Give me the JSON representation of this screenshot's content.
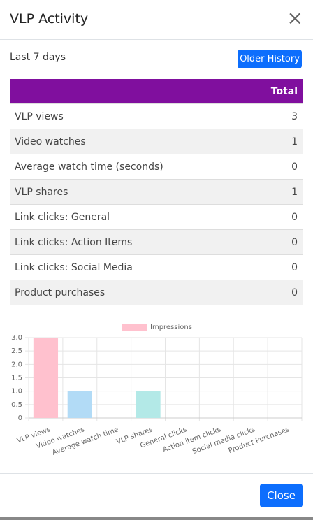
{
  "header": {
    "title": "VLP Activity",
    "close_icon": "×"
  },
  "period": "Last 7 days",
  "older_button": "Older History",
  "table": {
    "header": "Total",
    "rows": [
      [
        "VLP views",
        3
      ],
      [
        "Video watches",
        1
      ],
      [
        "Average watch time (seconds)",
        0
      ],
      [
        "VLP shares",
        1
      ],
      [
        "Link clicks: General",
        0
      ],
      [
        "Link clicks: Action Items",
        0
      ],
      [
        "Link clicks: Social Media",
        0
      ],
      [
        "Product purchases",
        0
      ]
    ]
  },
  "chart_data": {
    "type": "bar",
    "categories": [
      "VLP views",
      "Video watches",
      "Average watch time",
      "VLP shares",
      "General clicks",
      "Action item clicks",
      "Social media clicks",
      "Product Purchases"
    ],
    "series": [
      {
        "name": "Impressions",
        "color": "#ffc1ce",
        "colors": [
          "#ffc1ce",
          "#b2dbf6",
          "#ffe2b8",
          "#b3e9e7",
          "#d6c7ff",
          "#ffd9b3",
          "#ffc1ce",
          "#b2dbf6"
        ],
        "values": [
          3,
          1,
          0,
          1,
          0,
          0,
          0,
          0
        ]
      }
    ],
    "ylim": [
      0,
      3
    ],
    "yticks": [
      0,
      0.5,
      {
        "value": 1,
        "label": "1.0"
      },
      1.5,
      {
        "value": 2,
        "label": "2.0"
      },
      2.5,
      {
        "value": 3,
        "label": "3.0"
      }
    ],
    "grid": true,
    "legend": "top"
  },
  "close_button": "Close"
}
